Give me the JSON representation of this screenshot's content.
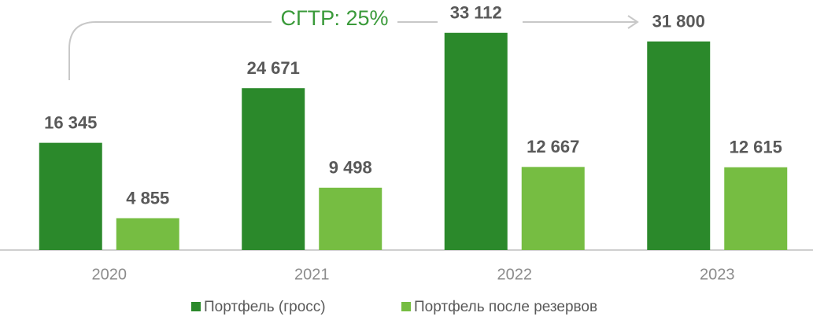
{
  "chart_data": {
    "type": "bar",
    "annotation": "СГТР: 25%",
    "categories": [
      "2020",
      "2021",
      "2022",
      "2023"
    ],
    "series": [
      {
        "name": "Портфель (гросс)",
        "color": "#2b892b",
        "values": [
          16345,
          24671,
          33112,
          31800
        ],
        "value_labels": [
          "16 345",
          "24 671",
          "33 112",
          "31 800"
        ]
      },
      {
        "name": "Портфель после резервов",
        "color": "#76bd42",
        "values": [
          4855,
          9498,
          12667,
          12615
        ],
        "value_labels": [
          "4 855",
          "9 498",
          "12 667",
          "12 615"
        ]
      }
    ],
    "ylim": [
      0,
      35000
    ],
    "legend": "bottom"
  }
}
